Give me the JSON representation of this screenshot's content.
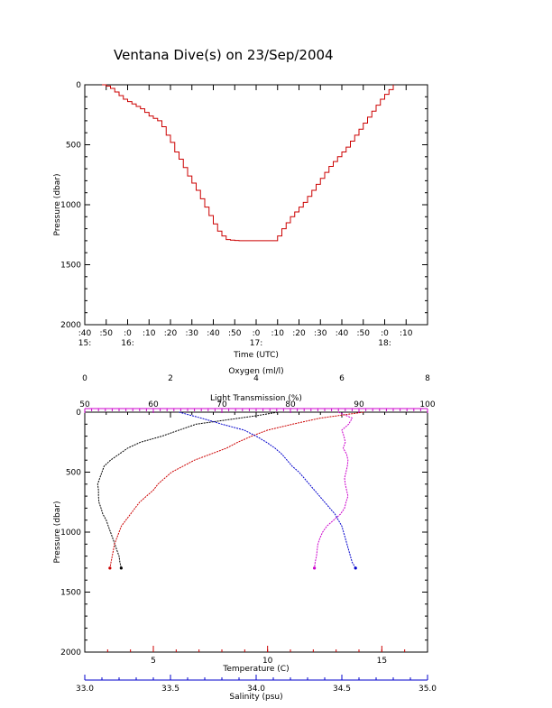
{
  "title": "Ventana Dive(s) on 23/Sep/2004",
  "chart_data": [
    {
      "type": "line",
      "xlabel": "Time (UTC)",
      "ylabel": "Pressure (dbar)",
      "x_unit": "minutes after 15:40 UTC",
      "xlim": [
        0,
        160
      ],
      "ylim": [
        2000,
        0
      ],
      "y_ticks": [
        "0",
        "500",
        "1000",
        "1500",
        "2000"
      ],
      "x_ticks_minute": [
        ":40",
        ":50",
        ":0",
        ":10",
        ":20",
        ":30",
        ":40",
        ":50",
        ":0",
        ":10",
        ":20",
        ":30",
        ":40",
        ":50",
        ":0",
        ":10"
      ],
      "x_ticks_hour": [
        {
          "minute": 0,
          "label": "15:"
        },
        {
          "minute": 20,
          "label": "16:"
        },
        {
          "minute": 80,
          "label": "17:"
        },
        {
          "minute": 140,
          "label": "18:"
        }
      ],
      "color": "#cc0000",
      "series": [
        {
          "x": [
            8,
            10,
            12,
            14,
            16,
            18,
            20,
            22,
            24,
            26,
            28,
            30,
            32,
            34,
            36,
            38,
            40,
            42,
            44,
            46,
            48,
            50,
            52,
            54,
            56,
            58,
            60,
            62,
            64,
            66,
            68,
            70,
            72,
            74,
            76,
            78,
            80,
            82,
            84,
            86,
            88,
            90,
            92,
            94,
            96,
            98,
            100,
            102,
            104,
            106,
            108,
            110,
            112,
            114,
            116,
            118,
            120,
            122,
            124,
            126,
            128,
            130,
            132,
            134,
            136,
            138,
            140,
            142,
            144
          ],
          "y": [
            0,
            10,
            30,
            60,
            90,
            120,
            140,
            160,
            180,
            200,
            230,
            260,
            280,
            300,
            350,
            420,
            480,
            560,
            620,
            690,
            760,
            820,
            880,
            950,
            1020,
            1090,
            1160,
            1220,
            1260,
            1290,
            1295,
            1298,
            1300,
            1300,
            1300,
            1300,
            1300,
            1300,
            1300,
            1300,
            1300,
            1260,
            1200,
            1150,
            1100,
            1060,
            1020,
            980,
            930,
            880,
            830,
            780,
            730,
            680,
            640,
            600,
            560,
            520,
            470,
            420,
            370,
            320,
            270,
            220,
            170,
            120,
            80,
            40,
            0
          ]
        }
      ]
    },
    {
      "type": "line",
      "ylabel": "Pressure (dbar)",
      "ylim": [
        2000,
        0
      ],
      "y_ticks": [
        "0",
        "500",
        "1000",
        "1500",
        "2000"
      ],
      "axes": {
        "oxygen": {
          "label": "Oxygen (ml/l)",
          "lim": [
            0,
            8
          ],
          "ticks": [
            "0",
            "2",
            "4",
            "6",
            "8"
          ],
          "color": "#000000"
        },
        "light": {
          "label": "Light Transmission (%)",
          "lim": [
            50,
            100
          ],
          "ticks": [
            "50",
            "60",
            "70",
            "80",
            "90",
            "100"
          ],
          "color": "#cc00cc"
        },
        "temperature": {
          "label": "Temperature (C)",
          "lim": [
            2.0,
            17.0
          ],
          "ticks": [
            "5",
            "10",
            "15"
          ],
          "tick_values": [
            5,
            10,
            15
          ],
          "color": "#cc0000"
        },
        "salinity": {
          "label": "Salinity (psu)",
          "lim": [
            33.0,
            35.0
          ],
          "ticks": [
            "33.0",
            "33.5",
            "34.0",
            "34.5",
            "35.0"
          ],
          "color": "#0000cc"
        }
      },
      "series": [
        {
          "axis": "oxygen",
          "color": "#000000",
          "pressure": [
            0,
            30,
            60,
            100,
            150,
            200,
            250,
            300,
            350,
            400,
            450,
            500,
            550,
            600,
            650,
            700,
            750,
            800,
            850,
            900,
            950,
            1000,
            1050,
            1100,
            1150,
            1200,
            1250,
            1300
          ],
          "value": [
            4.5,
            4.0,
            3.4,
            2.6,
            2.2,
            1.8,
            1.3,
            1.0,
            0.8,
            0.6,
            0.45,
            0.4,
            0.35,
            0.3,
            0.32,
            0.32,
            0.33,
            0.38,
            0.42,
            0.5,
            0.55,
            0.6,
            0.65,
            0.7,
            0.75,
            0.8,
            0.82,
            0.85
          ]
        },
        {
          "axis": "light",
          "color": "#cc00cc",
          "pressure": [
            0,
            50,
            100,
            150,
            200,
            250,
            300,
            350,
            400,
            450,
            500,
            550,
            600,
            650,
            700,
            750,
            800,
            850,
            900,
            950,
            1000,
            1050,
            1100,
            1150,
            1200,
            1250,
            1300
          ],
          "value": [
            87,
            89,
            88.5,
            87.5,
            87.8,
            88,
            87.7,
            88.2,
            88.4,
            88.3,
            88.1,
            87.9,
            88,
            88.2,
            88.4,
            88.1,
            87.9,
            87.3,
            86.3,
            85.3,
            84.7,
            84.3,
            84,
            83.9,
            83.8,
            83.6,
            83.5
          ]
        },
        {
          "axis": "temperature",
          "color": "#cc0000",
          "pressure": [
            0,
            50,
            100,
            150,
            200,
            250,
            300,
            350,
            400,
            450,
            500,
            550,
            600,
            650,
            700,
            750,
            800,
            850,
            900,
            950,
            1000,
            1050,
            1100,
            1150,
            1200,
            1250,
            1300
          ],
          "value": [
            14.2,
            12.3,
            11.1,
            10.0,
            9.3,
            8.7,
            8.2,
            7.5,
            6.8,
            6.3,
            5.8,
            5.5,
            5.2,
            5.0,
            4.7,
            4.4,
            4.2,
            4.0,
            3.8,
            3.6,
            3.5,
            3.4,
            3.3,
            3.25,
            3.2,
            3.15,
            3.1
          ]
        },
        {
          "axis": "salinity",
          "color": "#0000cc",
          "pressure": [
            0,
            50,
            100,
            150,
            200,
            250,
            300,
            350,
            400,
            450,
            500,
            550,
            600,
            650,
            700,
            750,
            800,
            850,
            900,
            950,
            1000,
            1050,
            1100,
            1150,
            1200,
            1250,
            1300
          ],
          "value": [
            33.55,
            33.68,
            33.8,
            33.93,
            34.0,
            34.06,
            34.11,
            34.15,
            34.18,
            34.21,
            34.25,
            34.28,
            34.31,
            34.34,
            34.37,
            34.4,
            34.43,
            34.46,
            34.48,
            34.5,
            34.51,
            34.52,
            34.53,
            34.54,
            34.55,
            34.56,
            34.58
          ]
        }
      ]
    }
  ]
}
